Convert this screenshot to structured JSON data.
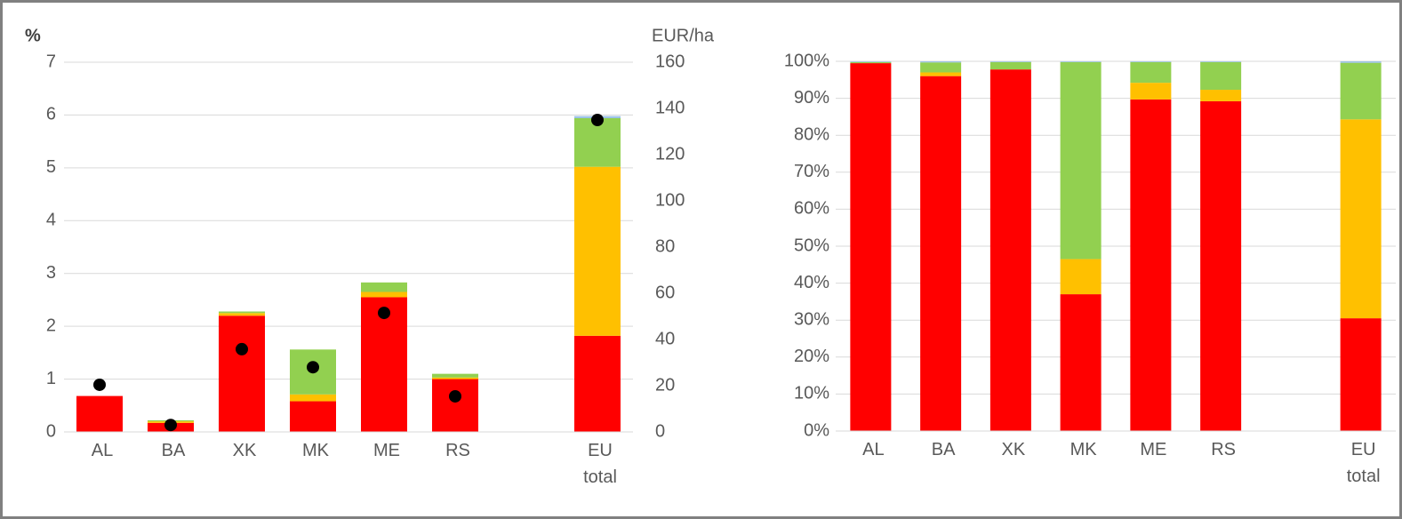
{
  "chart_data": [
    {
      "type": "bar",
      "stacked": true,
      "y_label": "%",
      "y2_label": "EUR/ha",
      "categories": [
        "AL",
        "BA",
        "XK",
        "MK",
        "ME",
        "RS",
        null,
        "EU total"
      ],
      "ylim": [
        0,
        7
      ],
      "yticks": [
        0,
        1,
        2,
        3,
        4,
        5,
        6,
        7
      ],
      "y2lim": [
        0,
        160
      ],
      "y2ticks": [
        0,
        20,
        40,
        60,
        80,
        100,
        120,
        140,
        160
      ],
      "grid": true,
      "series": [
        {
          "color": "#ff0000",
          "values": [
            0.68,
            0.17,
            2.2,
            0.58,
            2.55,
            1.0,
            null,
            1.82
          ]
        },
        {
          "color": "#ffc000",
          "values": [
            0,
            0.03,
            0.05,
            0.13,
            0.1,
            0.03,
            null,
            3.2
          ]
        },
        {
          "color": "#92d050",
          "values": [
            0,
            0.02,
            0.03,
            0.85,
            0.18,
            0.07,
            null,
            0.92
          ]
        },
        {
          "color": "#9dc3e6",
          "values": [
            0,
            0,
            0,
            0,
            0,
            0,
            null,
            0.04
          ]
        },
        {
          "type": "scatter",
          "axis": "y2",
          "color": "#000000",
          "values": [
            20.4,
            3,
            35.8,
            28,
            51.5,
            15.4,
            null,
            135
          ]
        }
      ]
    },
    {
      "type": "bar",
      "stacked": true,
      "categories": [
        "AL",
        "BA",
        "XK",
        "MK",
        "ME",
        "RS",
        null,
        "EU total"
      ],
      "ylim": [
        0,
        100
      ],
      "yticks": [
        {
          "value": 0,
          "label": "0%"
        },
        {
          "value": 10,
          "label": "10%"
        },
        {
          "value": 20,
          "label": "20%"
        },
        {
          "value": 30,
          "label": "30%"
        },
        {
          "value": 40,
          "label": "40%"
        },
        {
          "value": 50,
          "label": "50%"
        },
        {
          "value": 60,
          "label": "60%"
        },
        {
          "value": 70,
          "label": "70%"
        },
        {
          "value": 80,
          "label": "80%"
        },
        {
          "value": 90,
          "label": "90%"
        },
        {
          "value": 100,
          "label": "100%"
        }
      ],
      "grid": true,
      "series": [
        {
          "color": "#ff0000",
          "values": [
            99.5,
            96,
            97.8,
            37,
            89.7,
            89.2,
            null,
            30.5
          ]
        },
        {
          "color": "#ffc000",
          "values": [
            0,
            1,
            0,
            9.5,
            4.5,
            3.1,
            null,
            53.8
          ]
        },
        {
          "color": "#92d050",
          "values": [
            0.3,
            2.7,
            2,
            53.3,
            5.6,
            7.5,
            null,
            15.3
          ]
        },
        {
          "color": "#9dc3e6",
          "values": [
            0.2,
            0.3,
            0.2,
            0.2,
            0.2,
            0.2,
            null,
            0.4
          ]
        }
      ]
    }
  ]
}
